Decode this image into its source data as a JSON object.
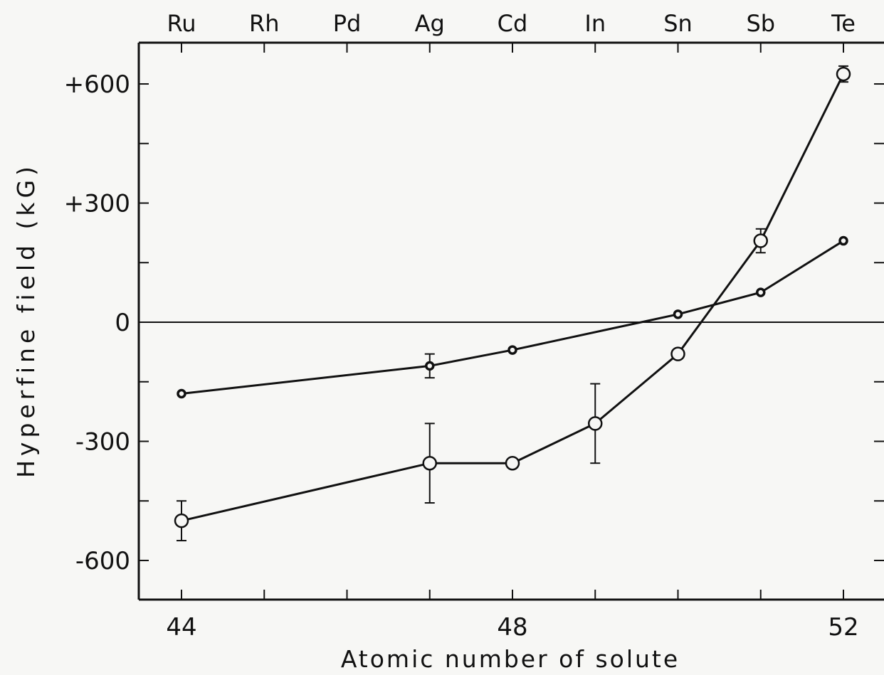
{
  "chart_data": {
    "type": "line",
    "title": "",
    "xlabel": "Atomic number of solute",
    "ylabel": "Hyperfine field (kG)",
    "xlim": [
      43.5,
      52.5
    ],
    "ylim": [
      -700,
      700
    ],
    "x_ticks": [
      44,
      45,
      46,
      47,
      48,
      49,
      50,
      51,
      52
    ],
    "x_tick_labels": [
      {
        "x": 44,
        "label": "44"
      },
      {
        "x": 48,
        "label": "48"
      },
      {
        "x": 52,
        "label": "52"
      }
    ],
    "y_ticks": [
      -600,
      -450,
      -300,
      -150,
      0,
      150,
      300,
      450,
      600
    ],
    "y_tick_labels": [
      {
        "y": 600,
        "label": "+600"
      },
      {
        "y": 300,
        "label": "+300"
      },
      {
        "y": 0,
        "label": "0"
      },
      {
        "y": -300,
        "label": "-300"
      },
      {
        "y": -600,
        "label": "-600"
      }
    ],
    "top_axis_labels": [
      {
        "x": 44,
        "label": "Ru"
      },
      {
        "x": 45,
        "label": "Rh"
      },
      {
        "x": 46,
        "label": "Pd"
      },
      {
        "x": 47,
        "label": "Ag"
      },
      {
        "x": 48,
        "label": "Cd"
      },
      {
        "x": 49,
        "label": "In"
      },
      {
        "x": 50,
        "label": "Sn"
      },
      {
        "x": 51,
        "label": "Sb"
      },
      {
        "x": 52,
        "label": "Te"
      }
    ],
    "zero_line": true,
    "grid": false,
    "legend": "none",
    "series": [
      {
        "marker": "small-filled-circle",
        "points": [
          {
            "x": 44,
            "y": -180
          },
          {
            "x": 47,
            "y": -110,
            "err": 30
          },
          {
            "x": 48,
            "y": -70
          },
          {
            "x": 50,
            "y": 20
          },
          {
            "x": 51,
            "y": 75
          },
          {
            "x": 52,
            "y": 205
          }
        ]
      },
      {
        "marker": "open-circle",
        "points": [
          {
            "x": 44,
            "y": -500,
            "err": 50
          },
          {
            "x": 47,
            "y": -355,
            "err": 100
          },
          {
            "x": 48,
            "y": -355
          },
          {
            "x": 49,
            "y": -255,
            "err": 100
          },
          {
            "x": 50,
            "y": -80
          },
          {
            "x": 51,
            "y": 205,
            "err": 30
          },
          {
            "x": 52,
            "y": 625,
            "err": 20
          }
        ]
      }
    ]
  }
}
